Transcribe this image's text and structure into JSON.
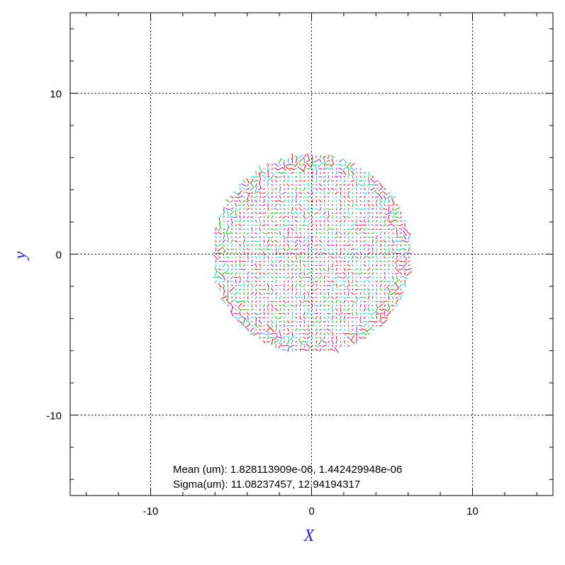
{
  "chart_data": {
    "type": "scatter",
    "title": "",
    "xlabel": "X",
    "ylabel": "y",
    "xlim": [
      -15,
      15
    ],
    "ylim": [
      -15,
      15
    ],
    "x_ticks": [
      -10,
      0,
      10
    ],
    "y_ticks": [
      -10,
      0,
      10
    ],
    "x_tick_labels": [
      "-10",
      "0",
      "10"
    ],
    "y_tick_labels": [
      "-10",
      "0",
      "10"
    ],
    "grid": true,
    "legend": "none",
    "series_colors": [
      "#ff0000",
      "#00c000",
      "#00c8c8",
      "#c000c0"
    ],
    "pattern": {
      "shape": "disk",
      "center": [
        0,
        0
      ],
      "radius": 6.2,
      "grid_step": 0.25
    },
    "annotations": {
      "mean_label": "Mean (um):",
      "mean_values": "1.828113909e-06, 1.442429948e-06",
      "sigma_label": "Sigma(um):",
      "sigma_values": "11.08237457, 12.94194317"
    }
  }
}
